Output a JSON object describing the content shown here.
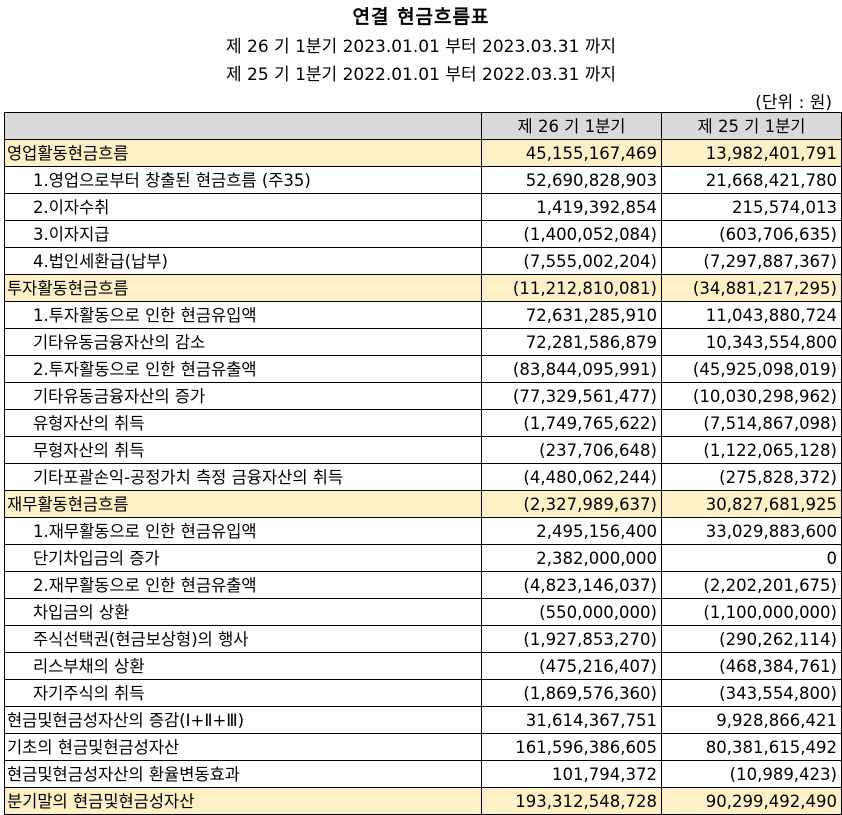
{
  "header": {
    "title": "연결 현금흐름표",
    "period_current": "제 26 기 1분기 2023.01.01 부터 2023.03.31 까지",
    "period_prior": "제 25 기 1분기 2022.01.01 부터 2022.03.31 까지",
    "unit": "(단위 : 원)"
  },
  "table": {
    "columns": [
      "",
      "제 26 기 1분기",
      "제 25 기 1분기"
    ],
    "rows": [
      {
        "label": "영업활동현금흐름",
        "cur": "45,155,167,469",
        "prev": "13,982,401,791",
        "section": true,
        "indent": 0
      },
      {
        "label": "1.영업으로부터 창출된 현금흐름 (주35)",
        "cur": "52,690,828,903",
        "prev": "21,668,421,780",
        "section": false,
        "indent": 1
      },
      {
        "label": "2.이자수취",
        "cur": "1,419,392,854",
        "prev": "215,574,013",
        "section": false,
        "indent": 1
      },
      {
        "label": "3.이자지급",
        "cur": "(1,400,052,084)",
        "prev": "(603,706,635)",
        "section": false,
        "indent": 1
      },
      {
        "label": "4.법인세환급(납부)",
        "cur": "(7,555,002,204)",
        "prev": "(7,297,887,367)",
        "section": false,
        "indent": 1
      },
      {
        "label": "투자활동현금흐름",
        "cur": "(11,212,810,081)",
        "prev": "(34,881,217,295)",
        "section": true,
        "indent": 0
      },
      {
        "label": "1.투자활동으로 인한 현금유입액",
        "cur": "72,631,285,910",
        "prev": "11,043,880,724",
        "section": false,
        "indent": 1
      },
      {
        "label": "기타유동금융자산의 감소",
        "cur": "72,281,586,879",
        "prev": "10,343,554,800",
        "section": false,
        "indent": 1
      },
      {
        "label": "2.투자활동으로 인한 현금유출액",
        "cur": "(83,844,095,991)",
        "prev": "(45,925,098,019)",
        "section": false,
        "indent": 1
      },
      {
        "label": "기타유동금융자산의 증가",
        "cur": "(77,329,561,477)",
        "prev": "(10,030,298,962)",
        "section": false,
        "indent": 1
      },
      {
        "label": "유형자산의 취득",
        "cur": "(1,749,765,622)",
        "prev": "(7,514,867,098)",
        "section": false,
        "indent": 1
      },
      {
        "label": "무형자산의 취득",
        "cur": "(237,706,648)",
        "prev": "(1,122,065,128)",
        "section": false,
        "indent": 1
      },
      {
        "label": "기타포괄손익-공정가치 측정 금융자산의 취득",
        "cur": "(4,480,062,244)",
        "prev": "(275,828,372)",
        "section": false,
        "indent": 1
      },
      {
        "label": "재무활동현금흐름",
        "cur": "(2,327,989,637)",
        "prev": "30,827,681,925",
        "section": true,
        "indent": 0
      },
      {
        "label": "1.재무활동으로 인한 현금유입액",
        "cur": "2,495,156,400",
        "prev": "33,029,883,600",
        "section": false,
        "indent": 1
      },
      {
        "label": "단기차입금의 증가",
        "cur": "2,382,000,000",
        "prev": "0",
        "section": false,
        "indent": 1
      },
      {
        "label": "2.재무활동으로 인한 현금유출액",
        "cur": "(4,823,146,037)",
        "prev": "(2,202,201,675)",
        "section": false,
        "indent": 1
      },
      {
        "label": "차입금의 상환",
        "cur": "(550,000,000)",
        "prev": "(1,100,000,000)",
        "section": false,
        "indent": 1
      },
      {
        "label": "주식선택권(현금보상형)의 행사",
        "cur": "(1,927,853,270)",
        "prev": "(290,262,114)",
        "section": false,
        "indent": 1
      },
      {
        "label": "리스부채의 상환",
        "cur": "(475,216,407)",
        "prev": "(468,384,761)",
        "section": false,
        "indent": 1
      },
      {
        "label": "자기주식의 취득",
        "cur": "(1,869,576,360)",
        "prev": "(343,554,800)",
        "section": false,
        "indent": 1
      },
      {
        "label": "현금및현금성자산의 증감(Ⅰ+Ⅱ+Ⅲ)",
        "cur": "31,614,367,751",
        "prev": "9,928,866,421",
        "section": false,
        "indent": 0
      },
      {
        "label": "기초의 현금및현금성자산",
        "cur": "161,596,386,605",
        "prev": "80,381,615,492",
        "section": false,
        "indent": 0
      },
      {
        "label": "현금및현금성자산의 환율변동효과",
        "cur": "101,794,372",
        "prev": "(10,989,423)",
        "section": false,
        "indent": 0
      },
      {
        "label": "분기말의 현금및현금성자산",
        "cur": "193,312,548,728",
        "prev": "90,299,492,490",
        "section": true,
        "indent": 0
      }
    ]
  },
  "colors": {
    "header_bg": "#d9d9d9",
    "section_bg": "#fdf0c7"
  }
}
